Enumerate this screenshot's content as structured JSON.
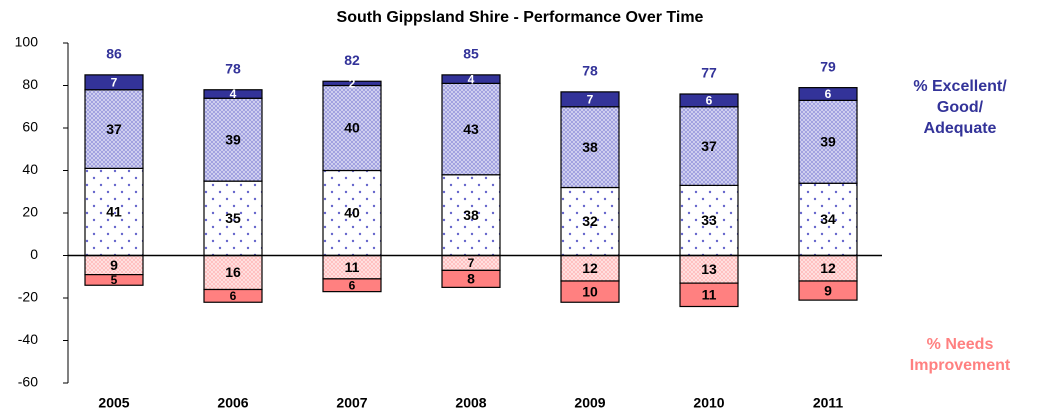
{
  "chart_data": {
    "type": "stacked_bar",
    "title": "South Gippsland Shire - Performance Over Time",
    "categories": [
      "2005",
      "2006",
      "2007",
      "2008",
      "2009",
      "2010",
      "2011"
    ],
    "series": [
      {
        "color": "#6666cc",
        "pattern": "dots",
        "values": [
          41,
          35,
          40,
          38,
          32,
          33,
          34
        ]
      },
      {
        "color": "#9999dd",
        "pattern": "crosshatch",
        "values": [
          37,
          39,
          40,
          43,
          38,
          37,
          39
        ]
      },
      {
        "color": "#333399",
        "pattern": "solid",
        "values": [
          7,
          4,
          2,
          4,
          7,
          6,
          6
        ]
      },
      {
        "color": "#ffbbbb",
        "pattern": "crosshatch",
        "values": [
          -9,
          -16,
          -11,
          -7,
          -12,
          -13,
          -12
        ],
        "value_labels": [
          "9",
          "16",
          "11",
          "7",
          "12",
          "13",
          "12"
        ]
      },
      {
        "color": "#ff8080",
        "pattern": "solid",
        "values": [
          -5,
          -6,
          -6,
          -8,
          -10,
          -11,
          -9
        ],
        "value_labels": [
          "5",
          "6",
          "6",
          "8",
          "10",
          "11",
          "9"
        ]
      }
    ],
    "totals": [
      86,
      78,
      82,
      85,
      78,
      77,
      79
    ],
    "totals_color": "#333399",
    "positive_label": {
      "lines": [
        "% Excellent/",
        "Good/",
        "Adequate"
      ],
      "color": "#333399"
    },
    "negative_label": {
      "lines": [
        "% Needs",
        "Improvement"
      ],
      "color": "#ff8080"
    },
    "ylim": [
      -60,
      100
    ],
    "yticks": [
      -60,
      -40,
      -20,
      0,
      20,
      40,
      60,
      80,
      100
    ],
    "grid": false
  }
}
